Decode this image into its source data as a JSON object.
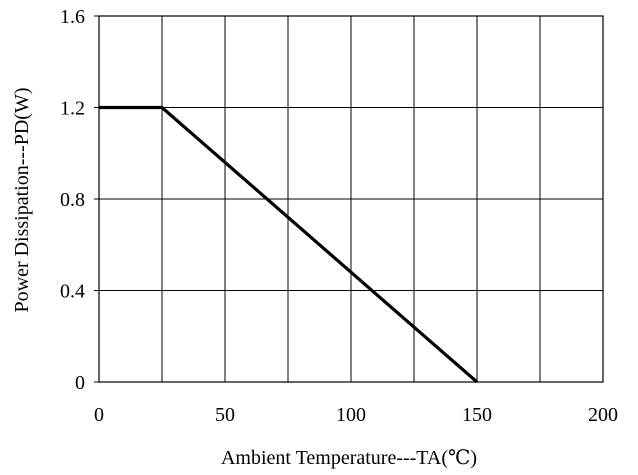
{
  "chart_data": {
    "type": "line",
    "xlabel": "Ambient Temperature---TA(℃)",
    "ylabel": "Power Dissipation---PD(W)",
    "xlim": [
      0,
      200
    ],
    "ylim": [
      0,
      1.6
    ],
    "x_ticks": [
      0,
      50,
      100,
      150,
      200
    ],
    "x_tick_labels": [
      "0",
      "50",
      "100",
      "150",
      "200"
    ],
    "x_grid": [
      0,
      25,
      50,
      75,
      100,
      125,
      150,
      175,
      200
    ],
    "y_ticks": [
      0,
      0.4,
      0.8,
      1.2,
      1.6
    ],
    "y_tick_labels": [
      "0",
      "0.4",
      "0.8",
      "1.2",
      "1.6"
    ],
    "grid": true,
    "series": [
      {
        "x": [
          0,
          25,
          150
        ],
        "y": [
          1.2,
          1.2,
          0
        ],
        "color": "#000000"
      }
    ]
  }
}
